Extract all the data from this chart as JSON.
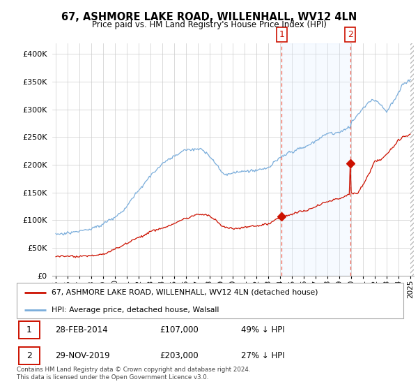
{
  "title": "67, ASHMORE LAKE ROAD, WILLENHALL, WV12 4LN",
  "subtitle": "Price paid vs. HM Land Registry's House Price Index (HPI)",
  "hpi_label": "HPI: Average price, detached house, Walsall",
  "property_label": "67, ASHMORE LAKE ROAD, WILLENHALL, WV12 4LN (detached house)",
  "sale1_date": "28-FEB-2014",
  "sale1_price": 107000,
  "sale1_hpi_text": "49% ↓ HPI",
  "sale2_date": "29-NOV-2019",
  "sale2_price": 203000,
  "sale2_hpi_text": "27% ↓ HPI",
  "footnote": "Contains HM Land Registry data © Crown copyright and database right 2024.\nThis data is licensed under the Open Government Licence v3.0.",
  "hpi_color": "#7aaddb",
  "property_color": "#cc1100",
  "dashed_line_color": "#ee6655",
  "shade_color": "#ddeeff",
  "hatch_color": "#cccccc",
  "ylim_max": 420000,
  "ylim_min": 0,
  "sale1_year_f": 2014.12,
  "sale2_year_f": 2019.92
}
